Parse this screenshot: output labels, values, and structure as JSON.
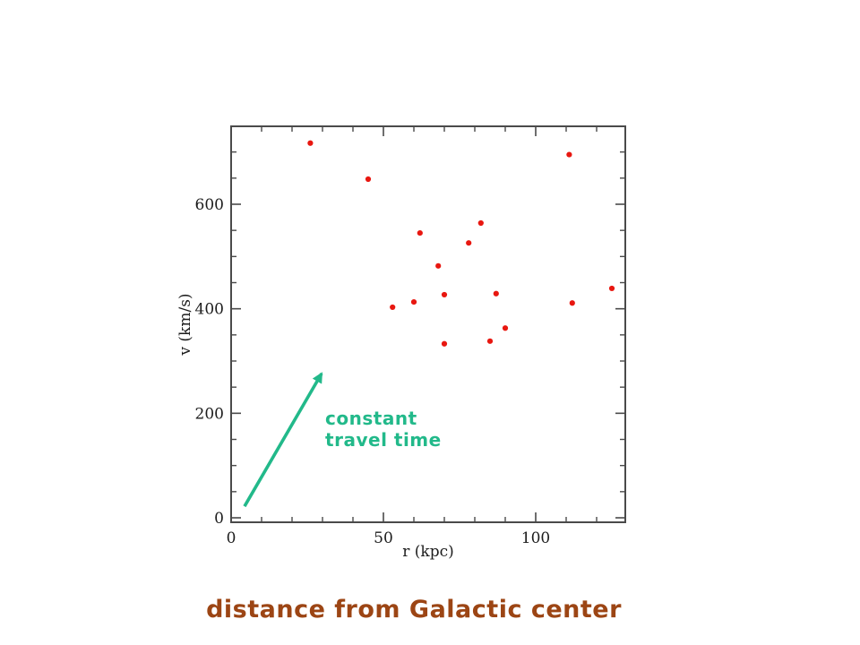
{
  "slide": {
    "background_color": "#ffffff",
    "caption": {
      "text": "distance from Galactic center",
      "color": "#9c4514"
    }
  },
  "chart_data": {
    "type": "scatter",
    "title": "",
    "xlabel": "r (kpc)",
    "ylabel": "v (km/s)",
    "xlim": [
      0,
      129
    ],
    "ylim": [
      0,
      750
    ],
    "grid": false,
    "x_major_ticks": [
      0,
      50,
      100
    ],
    "x_minor_step": 10,
    "y_major_ticks": [
      0,
      200,
      400,
      600
    ],
    "y_minor_step": 50,
    "frame_color": "#4a4a4a",
    "point_color": "#e81710",
    "points": [
      {
        "r": 26,
        "v": 717
      },
      {
        "r": 45,
        "v": 648
      },
      {
        "r": 111,
        "v": 695
      },
      {
        "r": 82,
        "v": 564
      },
      {
        "r": 62,
        "v": 545
      },
      {
        "r": 78,
        "v": 526
      },
      {
        "r": 68,
        "v": 482
      },
      {
        "r": 70,
        "v": 427
      },
      {
        "r": 87,
        "v": 429
      },
      {
        "r": 125,
        "v": 439
      },
      {
        "r": 112,
        "v": 411
      },
      {
        "r": 60,
        "v": 413
      },
      {
        "r": 53,
        "v": 403
      },
      {
        "r": 90,
        "v": 363
      },
      {
        "r": 85,
        "v": 338
      },
      {
        "r": 70,
        "v": 333
      }
    ],
    "annotation": {
      "lines": [
        "constant",
        "travel time"
      ],
      "color": "#22b98a",
      "text_anchor": {
        "r": 30.9,
        "v": 178
      },
      "arrow": {
        "from": {
          "r": 4.4,
          "v": 22
        },
        "to": {
          "r": 29.7,
          "v": 276
        }
      }
    }
  }
}
